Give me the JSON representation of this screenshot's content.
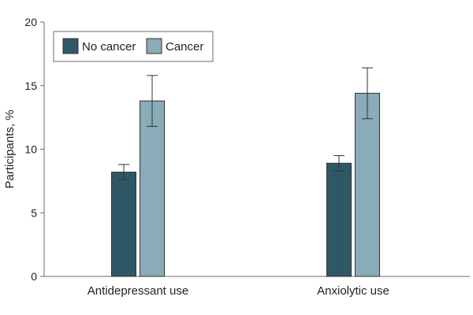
{
  "chart_data": {
    "type": "bar",
    "categories": [
      "Antidepressant use",
      "Anxiolytic use"
    ],
    "series": [
      {
        "name": "No cancer",
        "color": "#2e5866",
        "values": [
          8.2,
          8.9
        ],
        "error_low": [
          7.6,
          8.3
        ],
        "error_high": [
          8.8,
          9.5
        ]
      },
      {
        "name": "Cancer",
        "color": "#8aabb8",
        "values": [
          13.8,
          14.4
        ],
        "error_low": [
          11.8,
          12.4
        ],
        "error_high": [
          15.8,
          16.4
        ]
      }
    ],
    "ylabel": "Participants, %",
    "ylim": [
      0,
      20
    ],
    "yticks": [
      0,
      5,
      10,
      15,
      20
    ],
    "legend_position": "top-left",
    "grid": false
  }
}
